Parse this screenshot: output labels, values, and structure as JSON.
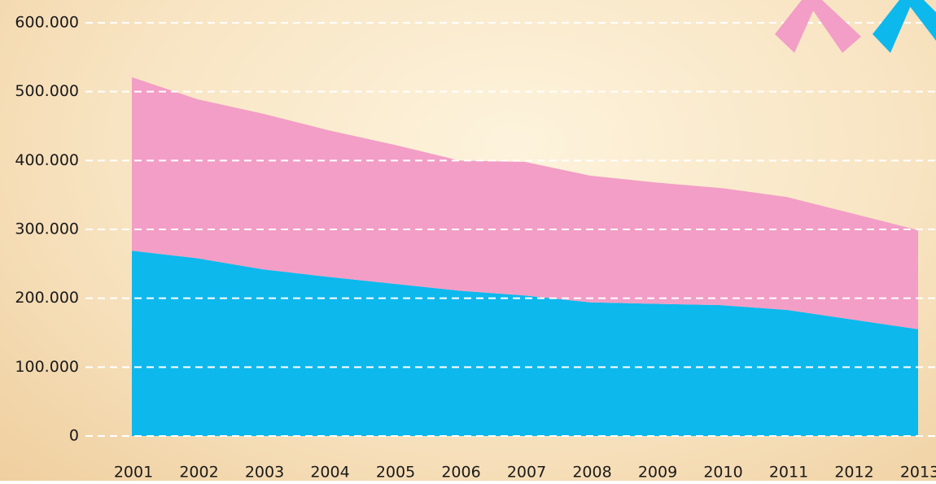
{
  "chart_data": {
    "type": "stacked_area",
    "categories": [
      "2001",
      "2002",
      "2003",
      "2004",
      "2005",
      "2006",
      "2007",
      "2008",
      "2009",
      "2010",
      "2011",
      "2012",
      "2013"
    ],
    "series": [
      {
        "color": "#0db8ed",
        "values": [
          269000,
          258000,
          242000,
          231000,
          221000,
          211000,
          204000,
          194000,
          192000,
          190000,
          183000,
          169000,
          155000
        ]
      },
      {
        "color": "#f29ec6",
        "values": [
          252000,
          231000,
          226000,
          213000,
          202000,
          189000,
          194000,
          184000,
          176000,
          170000,
          164000,
          154000,
          144000
        ]
      }
    ],
    "ylim": [
      0,
      600000
    ],
    "yticks": [
      0,
      {
        "value": 100000,
        "label": "100.000"
      },
      {
        "value": 200000,
        "label": "200.000"
      },
      {
        "value": 300000,
        "label": "300.000"
      },
      {
        "value": 400000,
        "label": "400.000"
      },
      {
        "value": 500000,
        "label": "500.000"
      },
      {
        "value": 600000,
        "label": "600.000"
      }
    ],
    "grid": true
  }
}
